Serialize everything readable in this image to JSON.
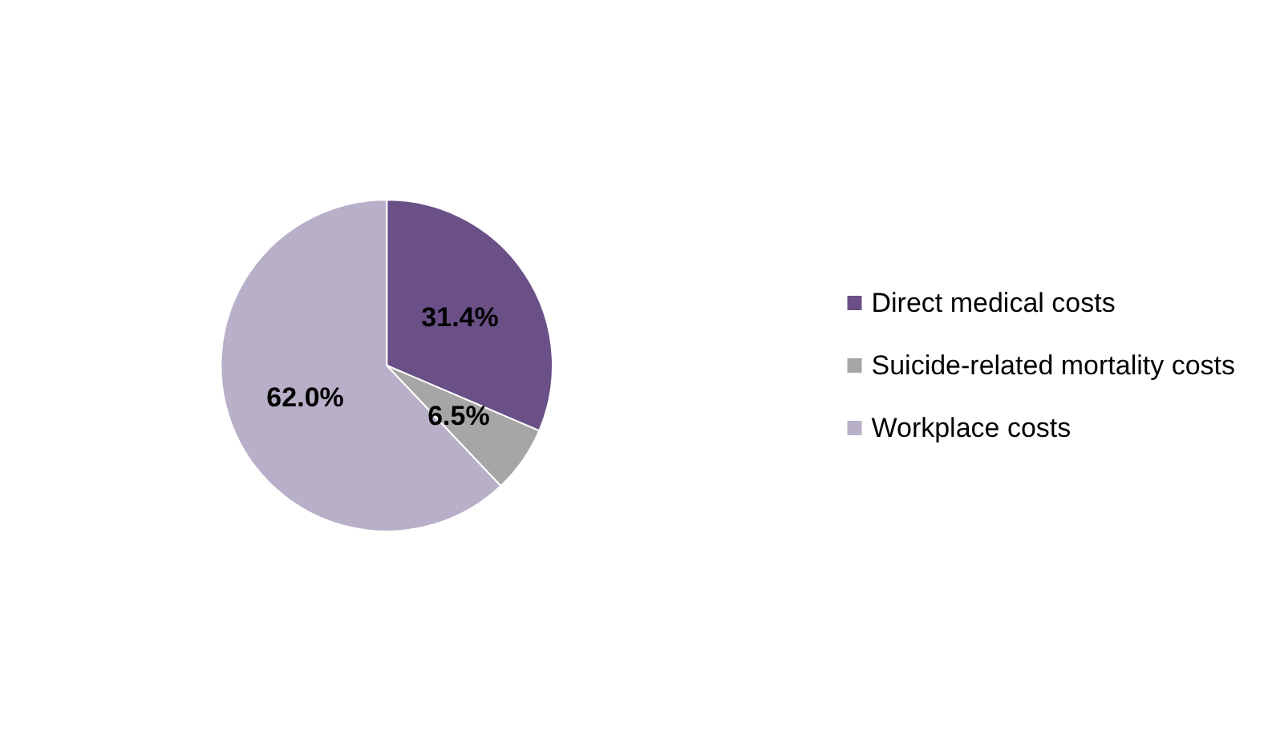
{
  "chart_data": {
    "type": "pie",
    "categories": [
      "Direct medical costs",
      "Suicide-related mortality costs",
      "Workplace costs"
    ],
    "values": [
      31.4,
      6.5,
      62.0
    ],
    "colors": [
      "#6a5087",
      "#a6a6a6",
      "#b8afc9"
    ],
    "value_labels": [
      "31.4%",
      "6.5%",
      "62.0%"
    ],
    "legend": "right"
  }
}
